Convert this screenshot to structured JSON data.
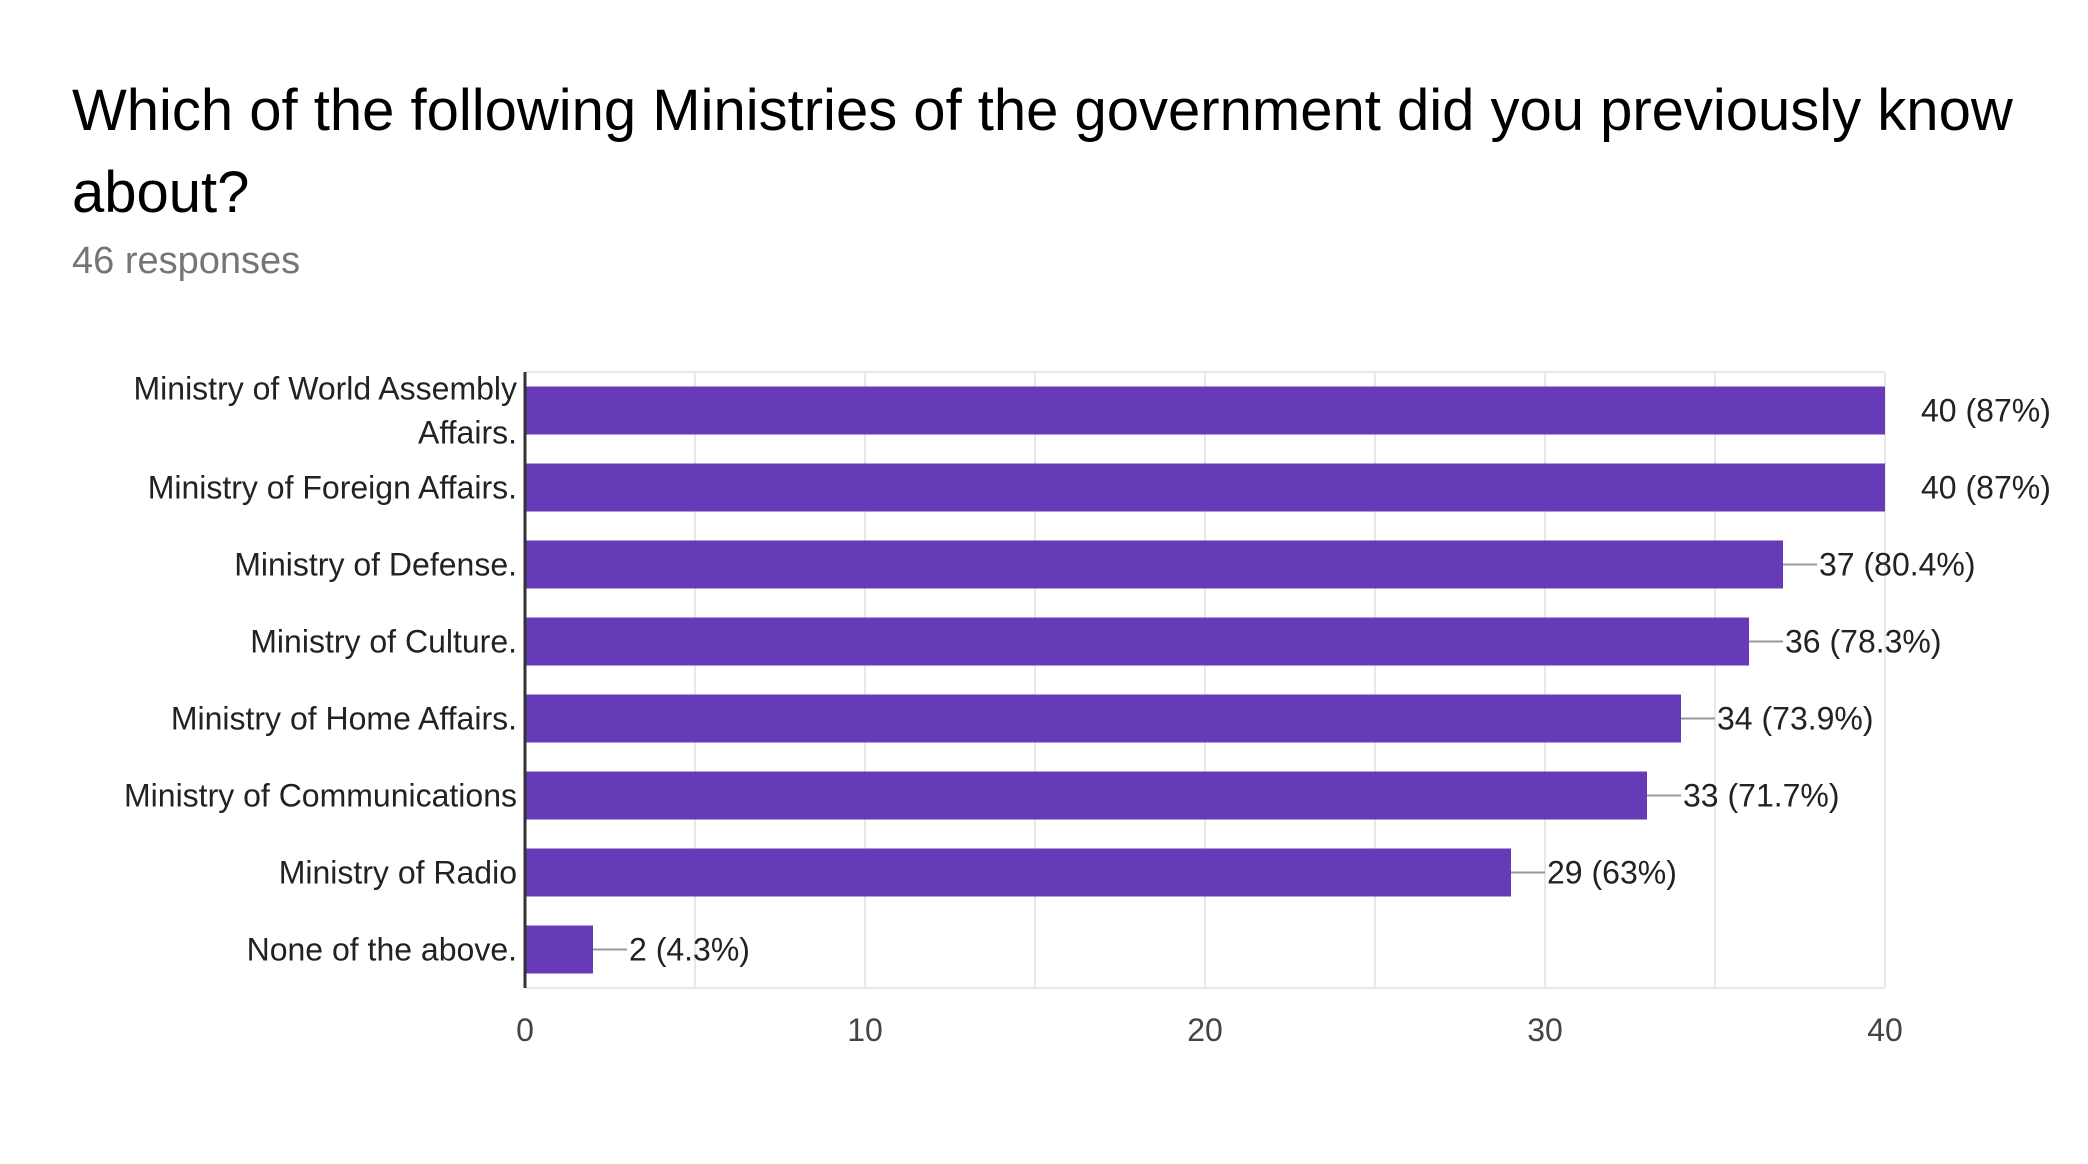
{
  "header": {
    "title": "Which of the following Ministries of the government did you previously know about?",
    "subtitle": "46 responses"
  },
  "colors": {
    "bar": "#673ab7",
    "grid": "#e8e8e8",
    "axis": "#333333",
    "leader": "#999999"
  },
  "chart_data": {
    "type": "bar",
    "orientation": "horizontal",
    "title": "Which of the following Ministries of the government did you previously know about?",
    "subtitle": "46 responses",
    "categories": [
      [
        "Ministry of World Assembly",
        "Affairs."
      ],
      [
        "Ministry of Foreign Affairs."
      ],
      [
        "Ministry of Defense."
      ],
      [
        "Ministry of Culture."
      ],
      [
        "Ministry of Home Affairs."
      ],
      [
        "Ministry of Communications"
      ],
      [
        "Ministry of Radio"
      ],
      [
        "None of the above."
      ]
    ],
    "values": [
      40,
      40,
      37,
      36,
      34,
      33,
      29,
      2
    ],
    "value_labels": [
      "40 (87%)",
      "40 (87%)",
      "37 (80.4%)",
      "36 (78.3%)",
      "34 (73.9%)",
      "33 (71.7%)",
      "29 (63%)",
      "2 (4.3%)"
    ],
    "xlim": [
      0,
      40
    ],
    "xticks": [
      0,
      10,
      20,
      30,
      40
    ],
    "grid": true,
    "xlabel": "",
    "ylabel": ""
  }
}
